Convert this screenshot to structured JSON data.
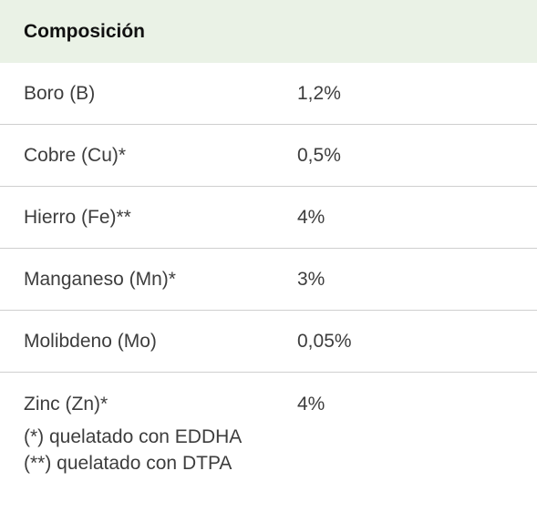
{
  "table": {
    "header": "Composición",
    "rows": [
      {
        "name": "Boro (B)",
        "value": "1,2%"
      },
      {
        "name": "Cobre (Cu)*",
        "value": "0,5%"
      },
      {
        "name": "Hierro (Fe)**",
        "value": "4%"
      },
      {
        "name": "Manganeso (Mn)*",
        "value": "3%"
      },
      {
        "name": "Molibdeno (Mo)",
        "value": "0,05%"
      },
      {
        "name": "Zinc (Zn)*",
        "value": "4%"
      }
    ],
    "notes": [
      "(*) quelatado con EDDHA",
      "(**) quelatado con DTPA"
    ]
  },
  "colors": {
    "header_bg": "#eaf2e6",
    "divider": "#cfcfcf",
    "text": "#3d3d3d"
  }
}
